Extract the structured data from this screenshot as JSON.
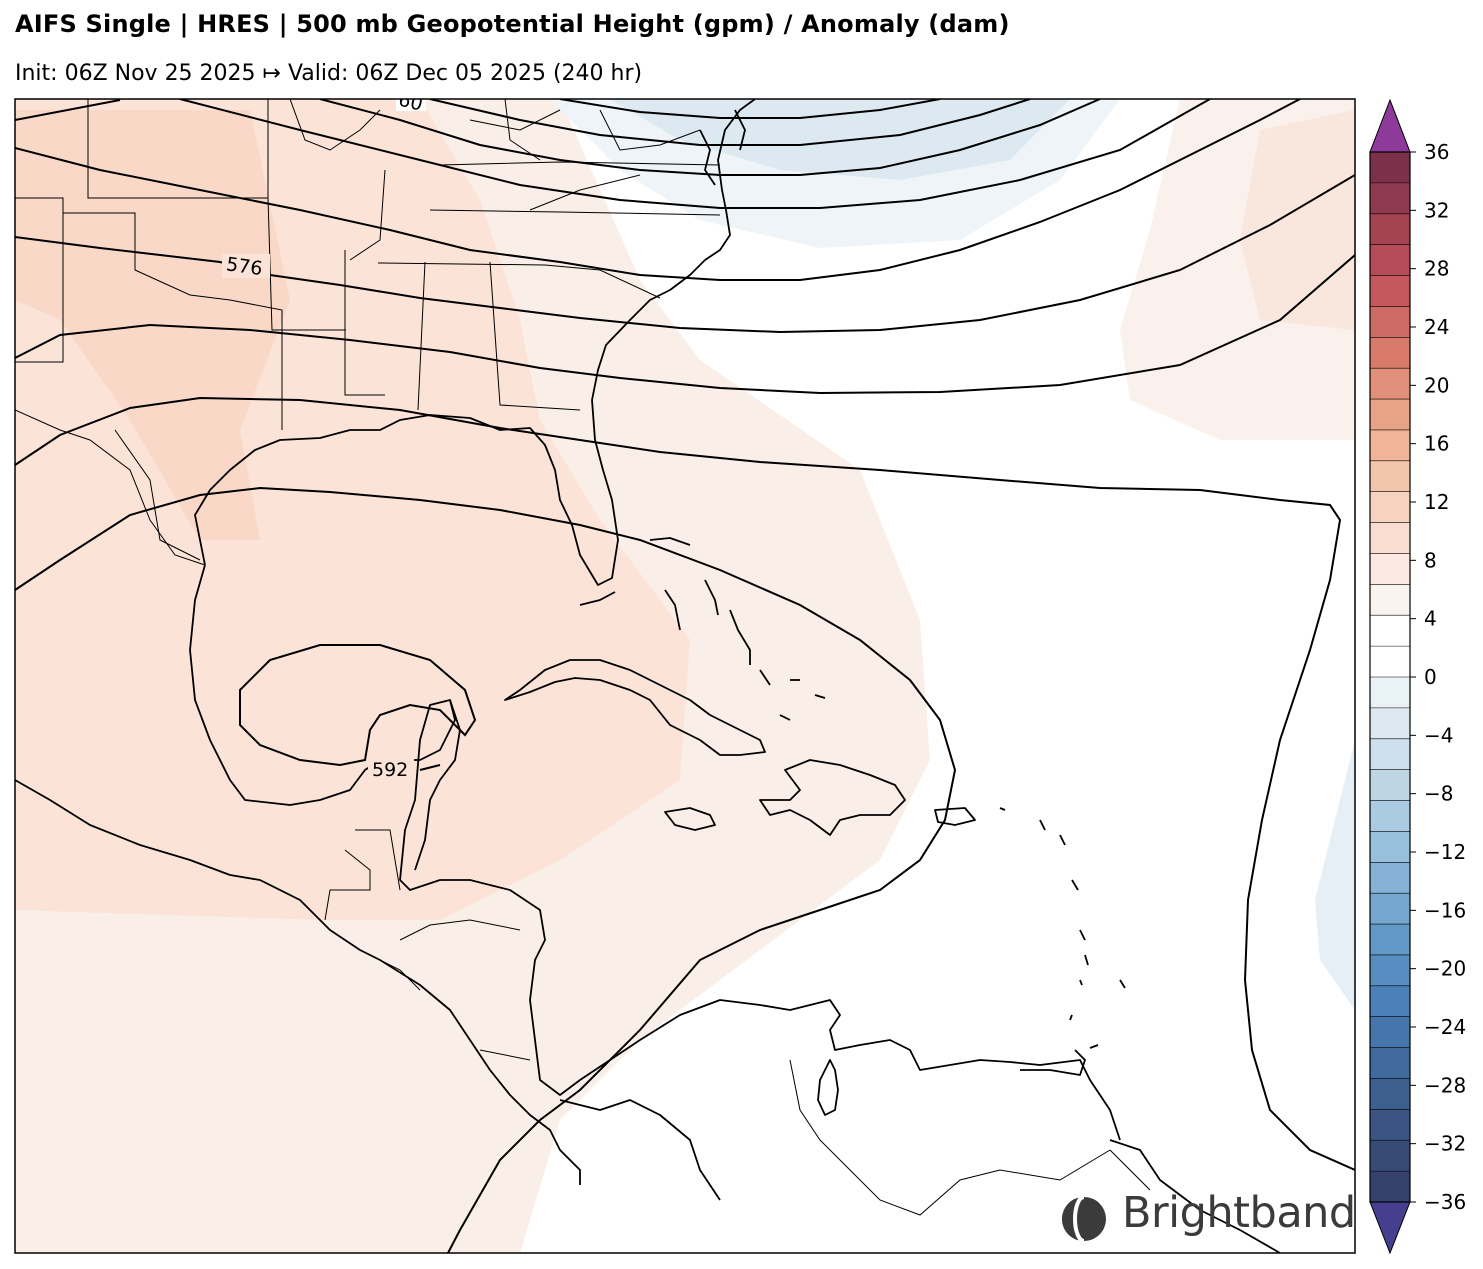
{
  "header": {
    "title": "AIFS Single | HRES | 500 mb Geopotential Height (gpm) / Anomaly (dam)",
    "subtitle": "Init: 06Z Nov 25 2025 ↦ Valid: 06Z Dec 05 2025 (240 hr)"
  },
  "map": {
    "contour_labels": [
      {
        "id": "label-576",
        "text": "576"
      },
      {
        "id": "label-592",
        "text": "592"
      },
      {
        "id": "label-top",
        "text": "60"
      }
    ]
  },
  "colorbar": {
    "tick_labels": [
      "36",
      "32",
      "28",
      "24",
      "20",
      "16",
      "12",
      "8",
      "4",
      "0",
      "−4",
      "−8",
      "−12",
      "−16",
      "−20",
      "−24",
      "−28",
      "−32",
      "−36"
    ],
    "levels_top_to_bottom_colors": [
      "#7a3149",
      "#8f3a4e",
      "#a44352",
      "#b54c58",
      "#c4585c",
      "#cf6963",
      "#d87b6a",
      "#e18f78",
      "#e8a286",
      "#efb596",
      "#f3c6ab",
      "#f6d3bf",
      "#f8ddd0",
      "#faeae2",
      "#fbf3ee",
      "#ffffff",
      "#ffffff",
      "#e9f2f7",
      "#dde9f1",
      "#cfe0ec",
      "#bed5e6",
      "#aacbe1",
      "#98bfdc",
      "#85b2d6",
      "#74a6cf",
      "#6399c7",
      "#578dc0",
      "#4c80b8",
      "#4675ac",
      "#416a9e",
      "#3d5f8f",
      "#3b5583",
      "#384b77",
      "#35416b"
    ],
    "over_color": "#8e3a9a",
    "under_color": "#463f8f"
  },
  "logo": {
    "text": "Brightband"
  }
}
